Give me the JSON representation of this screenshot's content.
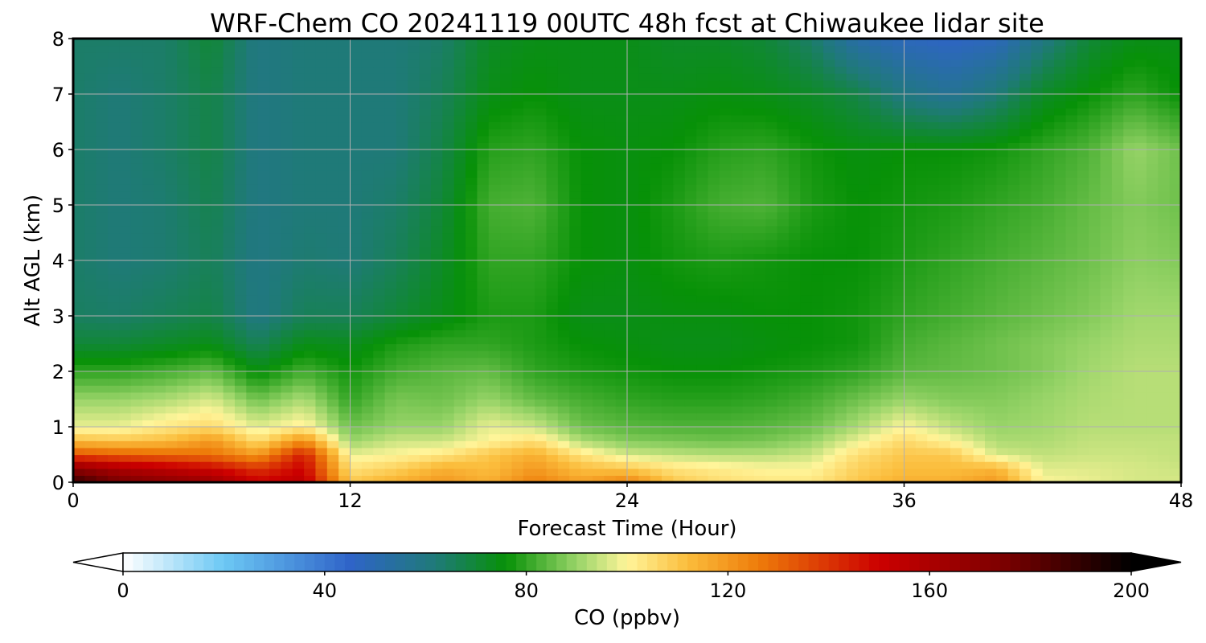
{
  "chart_data": {
    "type": "heatmap",
    "title": "WRF-Chem CO  20241119 00UTC 48h fcst at Chiwaukee lidar site",
    "xlabel": "Forecast Time (Hour)",
    "ylabel": "Alt AGL (km)",
    "xlim": [
      0,
      48
    ],
    "ylim": [
      0,
      8
    ],
    "xticks": [
      0,
      12,
      24,
      36,
      48
    ],
    "yticks": [
      0,
      1,
      2,
      3,
      4,
      5,
      6,
      7,
      8
    ],
    "grid": true,
    "colorbar": {
      "label": "CO  (ppbv)",
      "range": [
        0,
        200
      ],
      "ticks": [
        0,
        40,
        80,
        120,
        160,
        200
      ],
      "extend": "both",
      "orientation": "horizontal",
      "placement": "bottom",
      "stops": [
        {
          "value": 0,
          "color": "#ffffff"
        },
        {
          "value": 20,
          "color": "#6cc8f4"
        },
        {
          "value": 45,
          "color": "#2f64c8"
        },
        {
          "value": 62,
          "color": "#1f7a78"
        },
        {
          "value": 76,
          "color": "#079107"
        },
        {
          "value": 90,
          "color": "#98d468"
        },
        {
          "value": 100,
          "color": "#fff59a"
        },
        {
          "value": 112,
          "color": "#fbbd3c"
        },
        {
          "value": 126,
          "color": "#ee7c0a"
        },
        {
          "value": 150,
          "color": "#cc0000"
        },
        {
          "value": 175,
          "color": "#7a0000"
        },
        {
          "value": 200,
          "color": "#000000"
        }
      ]
    },
    "x_hours": [
      0,
      2,
      4,
      6,
      8,
      10,
      12,
      14,
      16,
      18,
      20,
      22,
      24,
      26,
      28,
      30,
      32,
      34,
      36,
      38,
      40,
      42,
      44,
      46,
      48
    ],
    "y_km": [
      0,
      0.25,
      0.5,
      0.75,
      1,
      1.5,
      2,
      2.5,
      3,
      4,
      5,
      6,
      7,
      8
    ],
    "values": [
      [
        190,
        175,
        170,
        165,
        150,
        155,
        110,
        115,
        120,
        115,
        125,
        118,
        125,
        110,
        105,
        103,
        103,
        110,
        115,
        115,
        120,
        100,
        98,
        96,
        96
      ],
      [
        170,
        160,
        155,
        150,
        140,
        150,
        104,
        108,
        115,
        112,
        120,
        112,
        110,
        104,
        102,
        100,
        100,
        108,
        112,
        112,
        114,
        97,
        97,
        96,
        95
      ],
      [
        135,
        132,
        130,
        128,
        120,
        145,
        98,
        100,
        103,
        110,
        115,
        104,
        96,
        94,
        93,
        93,
        95,
        105,
        110,
        110,
        96,
        94,
        95,
        95,
        94
      ],
      [
        112,
        110,
        112,
        120,
        105,
        122,
        90,
        95,
        95,
        100,
        105,
        92,
        88,
        87,
        86,
        87,
        90,
        98,
        106,
        100,
        92,
        92,
        94,
        94,
        94
      ],
      [
        98,
        98,
        103,
        106,
        97,
        102,
        86,
        90,
        90,
        98,
        95,
        86,
        84,
        83,
        83,
        84,
        86,
        92,
        100,
        94,
        90,
        91,
        93,
        93,
        93
      ],
      [
        90,
        90,
        92,
        96,
        86,
        92,
        80,
        87,
        86,
        90,
        85,
        82,
        80,
        79,
        79,
        80,
        82,
        86,
        90,
        88,
        88,
        90,
        92,
        93,
        93
      ],
      [
        80,
        80,
        82,
        85,
        75,
        82,
        77,
        82,
        84,
        85,
        80,
        78,
        77,
        76,
        76,
        77,
        78,
        80,
        84,
        85,
        86,
        88,
        91,
        93,
        93
      ],
      [
        70,
        70,
        72,
        74,
        66,
        74,
        73,
        78,
        80,
        80,
        78,
        76,
        75,
        74,
        74,
        75,
        76,
        77,
        82,
        84,
        86,
        88,
        90,
        92,
        92
      ],
      [
        65,
        64,
        66,
        68,
        60,
        66,
        66,
        70,
        74,
        78,
        78,
        74,
        74,
        75,
        75,
        76,
        76,
        77,
        80,
        82,
        84,
        86,
        88,
        91,
        91
      ],
      [
        64,
        62,
        63,
        66,
        60,
        63,
        62,
        66,
        72,
        80,
        80,
        76,
        75,
        77,
        78,
        77,
        76,
        76,
        78,
        80,
        82,
        84,
        86,
        89,
        88
      ],
      [
        64,
        62,
        63,
        67,
        60,
        62,
        62,
        64,
        70,
        82,
        83,
        76,
        75,
        78,
        82,
        83,
        78,
        76,
        77,
        78,
        80,
        82,
        85,
        88,
        86
      ],
      [
        64,
        62,
        64,
        68,
        60,
        62,
        62,
        62,
        68,
        79,
        80,
        76,
        75,
        76,
        79,
        80,
        77,
        75,
        76,
        76,
        77,
        80,
        83,
        90,
        86
      ],
      [
        64,
        62,
        64,
        68,
        60,
        62,
        62,
        62,
        66,
        74,
        76,
        74,
        74,
        74,
        75,
        74,
        72,
        68,
        60,
        56,
        62,
        72,
        76,
        80,
        76
      ],
      [
        64,
        64,
        64,
        70,
        60,
        62,
        62,
        62,
        64,
        72,
        74,
        74,
        74,
        72,
        72,
        70,
        64,
        52,
        48,
        46,
        48,
        60,
        70,
        74,
        74
      ]
    ]
  }
}
